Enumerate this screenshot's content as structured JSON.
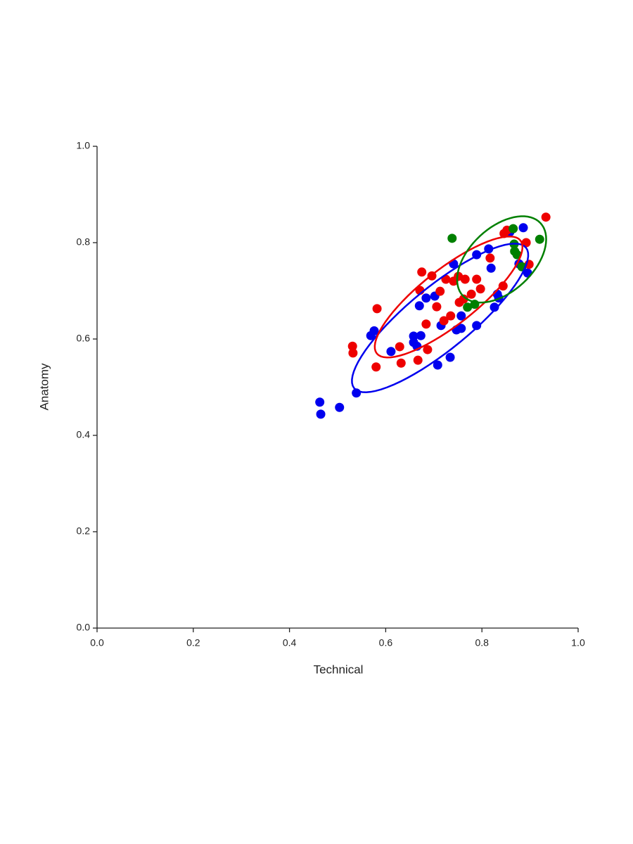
{
  "chart_data": {
    "type": "scatter",
    "x_label": "Technical",
    "y_label": "Anatomy",
    "xlim": [
      0,
      1
    ],
    "ylim": [
      0,
      1
    ],
    "xticks": [
      {
        "value": 0,
        "label": "0.0"
      },
      {
        "value": 0.2,
        "label": "0.2"
      },
      {
        "value": 0.4,
        "label": "0.4"
      },
      {
        "value": 0.6,
        "label": "0.6"
      },
      {
        "value": 0.8,
        "label": "0.8"
      },
      {
        "value": 1,
        "label": "1.0"
      }
    ],
    "yticks": [
      {
        "value": 0,
        "label": "0.0"
      },
      {
        "value": 0.2,
        "label": "0.2"
      },
      {
        "value": 0.4,
        "label": "0.4"
      },
      {
        "value": 0.6,
        "label": "0.6"
      },
      {
        "value": 0.8,
        "label": "0.8"
      },
      {
        "value": 1,
        "label": "1.0"
      }
    ],
    "grid": false,
    "ellipses": true,
    "series": [
      {
        "color": "#0000ee",
        "x": [
          0.463,
          0.465,
          0.504,
          0.539,
          0.569,
          0.576,
          0.611,
          0.658,
          0.658,
          0.665,
          0.673,
          0.67,
          0.684,
          0.702,
          0.715,
          0.708,
          0.734,
          0.741,
          0.747,
          0.757,
          0.757,
          0.789,
          0.789,
          0.814,
          0.819,
          0.826,
          0.832,
          0.835,
          0.858,
          0.877,
          0.886,
          0.895
        ],
        "y": [
          0.469,
          0.444,
          0.458,
          0.488,
          0.607,
          0.617,
          0.574,
          0.606,
          0.593,
          0.585,
          0.607,
          0.669,
          0.685,
          0.689,
          0.628,
          0.546,
          0.562,
          0.756,
          0.619,
          0.622,
          0.648,
          0.775,
          0.628,
          0.787,
          0.747,
          0.666,
          0.693,
          0.685,
          0.822,
          0.756,
          0.831,
          0.737
        ]
      },
      {
        "color": "#ee0000",
        "x": [
          0.531,
          0.532,
          0.582,
          0.58,
          0.629,
          0.632,
          0.667,
          0.671,
          0.675,
          0.687,
          0.684,
          0.696,
          0.706,
          0.713,
          0.721,
          0.725,
          0.735,
          0.741,
          0.751,
          0.753,
          0.762,
          0.765,
          0.778,
          0.789,
          0.797,
          0.817,
          0.844,
          0.846,
          0.852,
          0.892,
          0.898,
          0.933
        ],
        "y": [
          0.585,
          0.571,
          0.663,
          0.542,
          0.584,
          0.55,
          0.556,
          0.701,
          0.739,
          0.578,
          0.631,
          0.731,
          0.667,
          0.699,
          0.638,
          0.724,
          0.648,
          0.72,
          0.73,
          0.676,
          0.683,
          0.724,
          0.693,
          0.724,
          0.704,
          0.768,
          0.71,
          0.819,
          0.826,
          0.8,
          0.755,
          0.853
        ]
      },
      {
        "color": "#008000",
        "x": [
          0.738,
          0.77,
          0.785,
          0.865,
          0.867,
          0.868,
          0.92,
          0.883,
          0.873
        ],
        "y": [
          0.809,
          0.666,
          0.672,
          0.829,
          0.797,
          0.782,
          0.807,
          0.75,
          0.775
        ]
      }
    ]
  }
}
